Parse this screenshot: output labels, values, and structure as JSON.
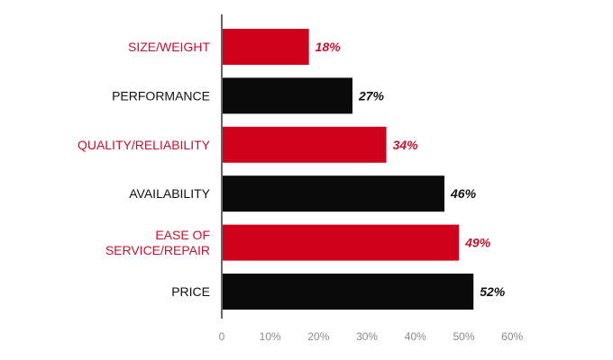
{
  "chart_data": {
    "type": "bar",
    "orientation": "horizontal",
    "categories": [
      [
        "SIZE/WEIGHT"
      ],
      [
        "PERFORMANCE"
      ],
      [
        "QUALITY/RELIABILITY"
      ],
      [
        "AVAILABILITY"
      ],
      [
        "EASE OF",
        "SERVICE/REPAIR"
      ],
      [
        "PRICE"
      ]
    ],
    "values": [
      18,
      27,
      34,
      46,
      49,
      52
    ],
    "value_labels": [
      "18%",
      "27%",
      "34%",
      "46%",
      "49%",
      "52%"
    ],
    "bar_colors": [
      "#d0021b",
      "#0a0a0a",
      "#d0021b",
      "#0a0a0a",
      "#d0021b",
      "#0a0a0a"
    ],
    "label_colors": [
      "#c8102e",
      "#111111",
      "#c8102e",
      "#111111",
      "#c8102e",
      "#111111"
    ],
    "xlim": [
      0,
      60
    ],
    "xticks": [
      0,
      10,
      20,
      30,
      40,
      50,
      60
    ],
    "xtick_labels": [
      "0",
      "10%",
      "20%",
      "30%",
      "40%",
      "50%",
      "60%"
    ],
    "title": "",
    "xlabel": "",
    "ylabel": "",
    "grid": false,
    "legend": "none"
  }
}
